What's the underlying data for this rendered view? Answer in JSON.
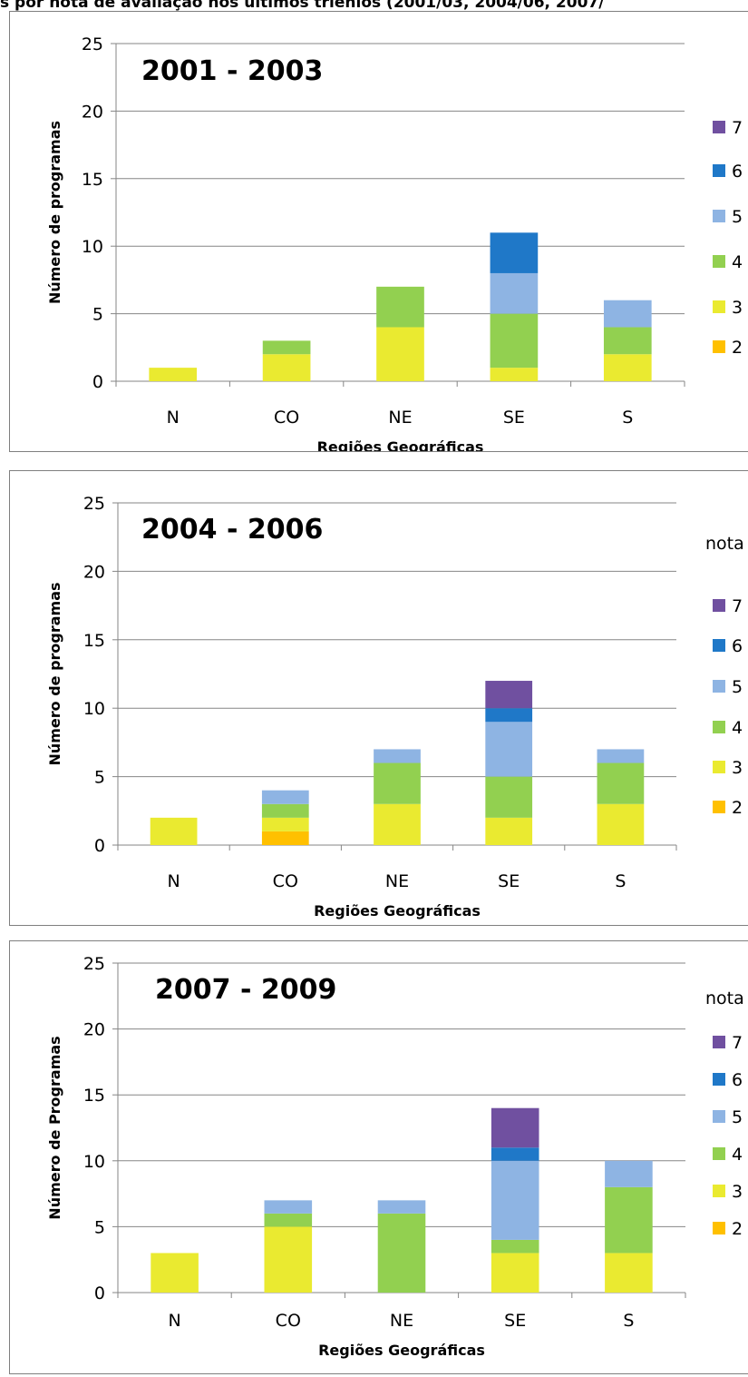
{
  "caption": "s por nota de avaliação nos últimos  triênios (2001/03, 2004/06, 2007/",
  "chart_data": [
    {
      "type": "bar",
      "stacked": true,
      "title": "2001 - 2003",
      "xlabel": "Regiões Geográficas",
      "ylabel": "Número de programas",
      "legend_title": "",
      "ylim": [
        0,
        25
      ],
      "yticks": [
        0,
        5,
        10,
        15,
        20,
        25
      ],
      "categories": [
        "N",
        "CO",
        "NE",
        "SE",
        "S"
      ],
      "series": [
        {
          "name": "2",
          "color": "#FFC000",
          "values": [
            0,
            0,
            0,
            0,
            0
          ]
        },
        {
          "name": "3",
          "color": "#EAEA30",
          "values": [
            1,
            2,
            4,
            1,
            2
          ]
        },
        {
          "name": "4",
          "color": "#92D050",
          "values": [
            0,
            1,
            3,
            4,
            2
          ]
        },
        {
          "name": "5",
          "color": "#8EB4E3",
          "values": [
            0,
            0,
            0,
            3,
            2
          ]
        },
        {
          "name": "6",
          "color": "#1F78C8",
          "values": [
            0,
            0,
            0,
            3,
            0
          ]
        },
        {
          "name": "7",
          "color": "#7050A0",
          "values": [
            0,
            0,
            0,
            0,
            0
          ]
        }
      ],
      "grid": true,
      "legend_position": "right"
    },
    {
      "type": "bar",
      "stacked": true,
      "title": "2004 - 2006",
      "xlabel": "Regiões Geográficas",
      "ylabel": "Número de programas",
      "legend_title": "nota",
      "ylim": [
        0,
        25
      ],
      "yticks": [
        0,
        5,
        10,
        15,
        20,
        25
      ],
      "categories": [
        "N",
        "CO",
        "NE",
        "SE",
        "S"
      ],
      "series": [
        {
          "name": "2",
          "color": "#FFC000",
          "values": [
            0,
            1,
            0,
            0,
            0
          ]
        },
        {
          "name": "3",
          "color": "#EAEA30",
          "values": [
            2,
            1,
            3,
            2,
            3
          ]
        },
        {
          "name": "4",
          "color": "#92D050",
          "values": [
            0,
            1,
            3,
            3,
            3
          ]
        },
        {
          "name": "5",
          "color": "#8EB4E3",
          "values": [
            0,
            1,
            1,
            4,
            1
          ]
        },
        {
          "name": "6",
          "color": "#1F78C8",
          "values": [
            0,
            0,
            0,
            1,
            0
          ]
        },
        {
          "name": "7",
          "color": "#7050A0",
          "values": [
            0,
            0,
            0,
            2,
            0
          ]
        }
      ],
      "grid": true,
      "legend_position": "right"
    },
    {
      "type": "bar",
      "stacked": true,
      "title": "2007 - 2009",
      "xlabel": "Regiões Geográficas",
      "ylabel": "Número de Programas",
      "legend_title": "nota",
      "ylim": [
        0,
        25
      ],
      "yticks": [
        0,
        5,
        10,
        15,
        20,
        25
      ],
      "categories": [
        "N",
        "CO",
        "NE",
        "SE",
        "S"
      ],
      "series": [
        {
          "name": "2",
          "color": "#FFC000",
          "values": [
            0,
            0,
            0,
            0,
            0
          ]
        },
        {
          "name": "3",
          "color": "#EAEA30",
          "values": [
            3,
            5,
            0,
            3,
            3
          ]
        },
        {
          "name": "4",
          "color": "#92D050",
          "values": [
            0,
            1,
            6,
            1,
            5
          ]
        },
        {
          "name": "5",
          "color": "#8EB4E3",
          "values": [
            0,
            1,
            1,
            6,
            2
          ]
        },
        {
          "name": "6",
          "color": "#1F78C8",
          "values": [
            0,
            0,
            0,
            1,
            0
          ]
        },
        {
          "name": "7",
          "color": "#7050A0",
          "values": [
            0,
            0,
            0,
            3,
            0
          ]
        }
      ],
      "grid": true,
      "legend_position": "right"
    }
  ]
}
